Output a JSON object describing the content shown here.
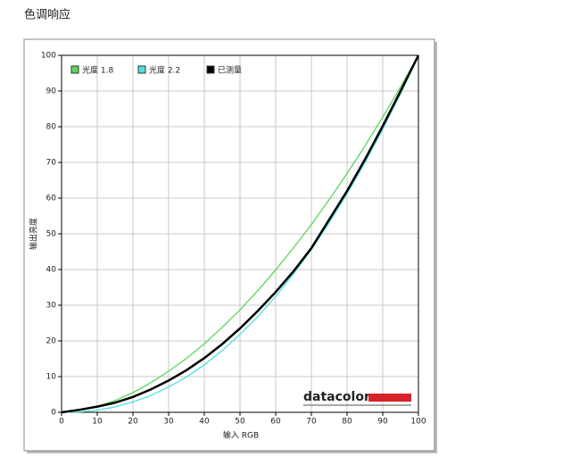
{
  "chart_data": {
    "type": "line",
    "title": "色调响应",
    "x_label": "输入 RGB",
    "y_label": "输出亮度",
    "watermark": "datacolor",
    "x": [
      0,
      5,
      10,
      15,
      20,
      25,
      30,
      35,
      40,
      45,
      50,
      55,
      60,
      65,
      70,
      75,
      80,
      85,
      90,
      95,
      100
    ],
    "series": [
      {
        "name": "光度 1.8",
        "color": "#5cd65c",
        "values": [
          0,
          0.5,
          1.6,
          3.3,
          5.5,
          8.3,
          11.5,
          15.1,
          19.2,
          23.8,
          28.7,
          34.1,
          39.9,
          46.1,
          52.6,
          59.6,
          66.9,
          74.6,
          82.7,
          91.2,
          100
        ]
      },
      {
        "name": "光度 2.2",
        "color": "#4fe0e0",
        "values": [
          0,
          0.1,
          0.6,
          1.5,
          2.9,
          4.7,
          7.1,
          9.9,
          13.3,
          17.3,
          21.8,
          26.8,
          32.5,
          38.8,
          45.6,
          53.1,
          61.2,
          69.9,
          79.3,
          89.3,
          100
        ]
      },
      {
        "name": "已测量",
        "color": "#000000",
        "values": [
          0,
          0.7,
          1.6,
          2.7,
          4.3,
          6.4,
          8.9,
          11.8,
          15.2,
          19.1,
          23.5,
          28.4,
          33.7,
          39.5,
          46,
          54,
          62,
          70.8,
          80.2,
          90,
          100
        ]
      }
    ],
    "xlim": [
      0,
      100
    ],
    "ylim": [
      0,
      100
    ],
    "xticks": [
      0,
      10,
      20,
      30,
      40,
      50,
      60,
      70,
      80,
      90,
      100
    ],
    "yticks": [
      0,
      10,
      20,
      30,
      40,
      50,
      60,
      70,
      80,
      90,
      100
    ],
    "grid": true
  }
}
